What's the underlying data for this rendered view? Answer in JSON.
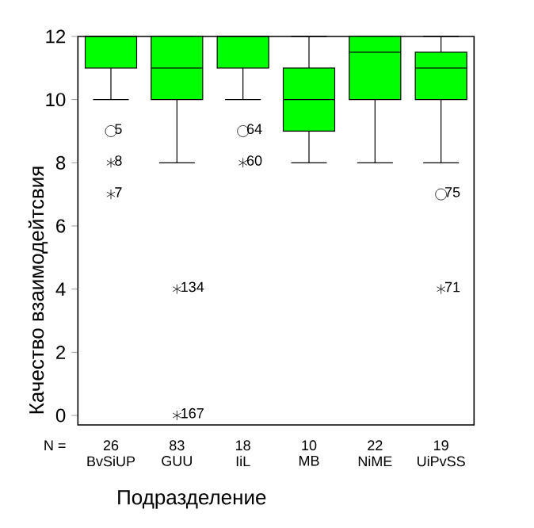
{
  "chart_data": {
    "type": "box",
    "xlabel": "Подразделение",
    "ylabel": "Качество взаимодейтсвия",
    "categories": [
      "BvSiUP",
      "GUU",
      "IiL",
      "MB",
      "NiME",
      "UiPvSS"
    ],
    "color": "#00ff00",
    "boxes": [
      {
        "low": 10,
        "q1": 11,
        "median": 12,
        "q3": 12,
        "high": 12,
        "outliers": [
          9,
          8,
          7
        ]
      },
      {
        "low": 8,
        "q1": 10,
        "median": 11,
        "q3": 12,
        "high": 12,
        "outliers": [
          4,
          0
        ]
      },
      {
        "low": 10,
        "q1": 11,
        "median": 12,
        "q3": 12,
        "high": 12,
        "outliers": [
          9,
          8
        ]
      },
      {
        "low": 8,
        "q1": 9,
        "median": 10,
        "q3": 11,
        "high": 12
      },
      {
        "low": 8,
        "q1": 10,
        "median": 11.5,
        "q3": 12,
        "high": 12
      },
      {
        "low": 8,
        "q1": 10,
        "median": 11,
        "q3": 11.5,
        "high": 12,
        "outliers": [
          7,
          4
        ]
      }
    ],
    "ylim": [
      -0.3,
      12
    ],
    "yticks": [
      0,
      2,
      4,
      6,
      8,
      10,
      12
    ],
    "annotations": [
      "N =",
      "26",
      "83",
      "18",
      "10",
      "22",
      "19",
      "5",
      "8",
      "7",
      "134",
      "167",
      "64",
      "60",
      "75",
      "71"
    ]
  }
}
